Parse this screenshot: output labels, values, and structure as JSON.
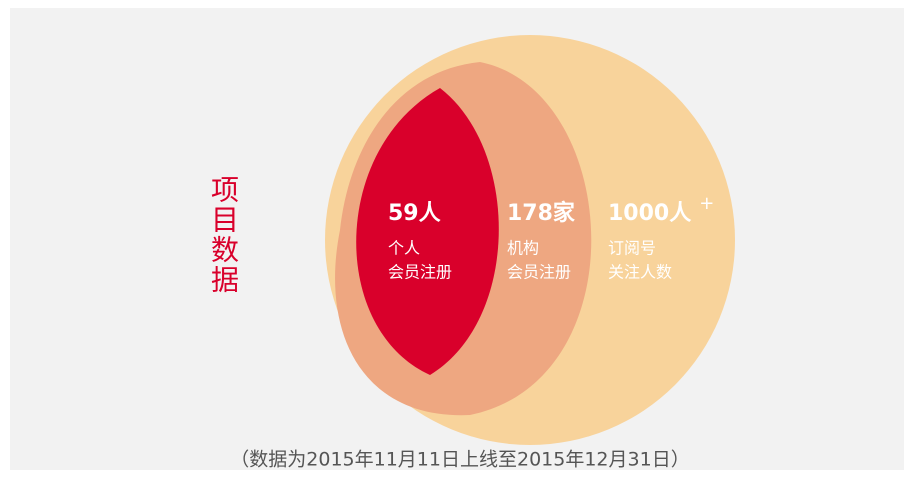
{
  "title": "项目数据",
  "items": [
    {
      "value": "59人",
      "lines": [
        "个人",
        "会员注册"
      ]
    },
    {
      "value": "178家",
      "lines": [
        "机构",
        "会员注册"
      ]
    },
    {
      "value": "1000人",
      "suffix": "+",
      "lines": [
        "订阅号",
        "关注人数"
      ]
    }
  ],
  "footnote": "（数据为2015年11月11日上线至2015年12月31日）"
}
